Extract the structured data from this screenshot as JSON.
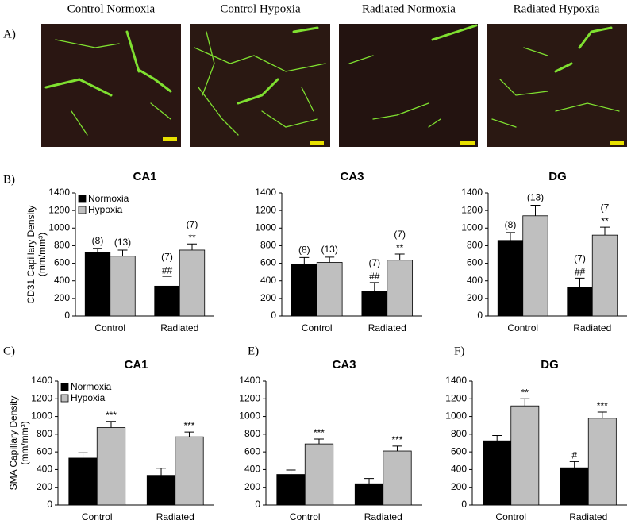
{
  "panel_a": {
    "label": "A)",
    "images": [
      "Control Normoxia",
      "Control Hypoxia",
      "Radiated Normoxia",
      "Radiated Hypoxia"
    ]
  },
  "chart_data": [
    {
      "type": "bar",
      "panel_label": "B)",
      "title": "CA1",
      "categories": [
        "Control",
        "Radiated"
      ],
      "ylabel": [
        "CD31 Capillary Density",
        "(mm/mm³)"
      ],
      "ylim": [
        0,
        1400
      ],
      "yticks": [
        0,
        200,
        400,
        600,
        800,
        1000,
        1200,
        1400
      ],
      "legend": "upper left",
      "series": [
        {
          "name": "Normoxia",
          "color": "#000000",
          "values": [
            720,
            340
          ],
          "errors": [
            50,
            110
          ],
          "n_labels": [
            "(8)",
            "(7)"
          ],
          "sig_labels": [
            null,
            "##"
          ]
        },
        {
          "name": "Hypoxia",
          "color": "#bfbfbf",
          "values": [
            680,
            750
          ],
          "errors": [
            70,
            70
          ],
          "n_labels": [
            "(13)",
            "(7)"
          ],
          "sig_labels": [
            null,
            "**"
          ]
        }
      ]
    },
    {
      "type": "bar",
      "title": "CA3",
      "categories": [
        "Control",
        "Radiated"
      ],
      "ylim": [
        0,
        1400
      ],
      "yticks": [
        0,
        200,
        400,
        600,
        800,
        1000,
        1200,
        1400
      ],
      "series": [
        {
          "name": "Normoxia",
          "color": "#000000",
          "values": [
            590,
            285
          ],
          "errors": [
            75,
            95
          ],
          "n_labels": [
            "(8)",
            "(7)"
          ],
          "sig_labels": [
            null,
            "##"
          ]
        },
        {
          "name": "Hypoxia",
          "color": "#bfbfbf",
          "values": [
            610,
            635
          ],
          "errors": [
            60,
            70
          ],
          "n_labels": [
            "(13)",
            "(7)"
          ],
          "sig_labels": [
            null,
            "**"
          ]
        }
      ]
    },
    {
      "type": "bar",
      "title": "DG",
      "categories": [
        "Control",
        "Radiated"
      ],
      "ylim": [
        0,
        1400
      ],
      "yticks": [
        0,
        200,
        400,
        600,
        800,
        1000,
        1200,
        1400
      ],
      "series": [
        {
          "name": "Normoxia",
          "color": "#000000",
          "values": [
            860,
            330
          ],
          "errors": [
            90,
            100
          ],
          "n_labels": [
            "(8)",
            "(7)"
          ],
          "sig_labels": [
            null,
            "##"
          ]
        },
        {
          "name": "Hypoxia",
          "color": "#bfbfbf",
          "values": [
            1140,
            920
          ],
          "errors": [
            120,
            90
          ],
          "n_labels": [
            "(13)",
            "(7"
          ],
          "sig_labels": [
            null,
            "**"
          ]
        }
      ]
    },
    {
      "type": "bar",
      "panel_label": "C)",
      "title": "CA1",
      "categories": [
        "Control",
        "Radiated"
      ],
      "ylabel": [
        "SMA Capillary Density",
        "(mm/mm³)"
      ],
      "ylim": [
        0,
        1400
      ],
      "yticks": [
        0,
        200,
        400,
        600,
        800,
        1000,
        1200,
        1400
      ],
      "legend": "upper left",
      "series": [
        {
          "name": "Normoxia",
          "color": "#000000",
          "values": [
            530,
            335
          ],
          "errors": [
            60,
            80
          ],
          "sig_labels": [
            null,
            null
          ]
        },
        {
          "name": "Hypoxia",
          "color": "#bfbfbf",
          "values": [
            875,
            770
          ],
          "errors": [
            70,
            55
          ],
          "sig_labels": [
            "***",
            "***"
          ]
        }
      ]
    },
    {
      "type": "bar",
      "panel_label": "E)",
      "title": "CA3",
      "categories": [
        "Control",
        "Radiated"
      ],
      "ylim": [
        0,
        1400
      ],
      "yticks": [
        0,
        200,
        400,
        600,
        800,
        1000,
        1200,
        1400
      ],
      "series": [
        {
          "name": "Normoxia",
          "color": "#000000",
          "values": [
            345,
            240
          ],
          "errors": [
            50,
            60
          ],
          "sig_labels": [
            null,
            null
          ]
        },
        {
          "name": "Hypoxia",
          "color": "#bfbfbf",
          "values": [
            690,
            610
          ],
          "errors": [
            55,
            55
          ],
          "sig_labels": [
            "***",
            "***"
          ]
        }
      ]
    },
    {
      "type": "bar",
      "panel_label": "F)",
      "title": "DG",
      "categories": [
        "Control",
        "Radiated"
      ],
      "ylim": [
        0,
        1400
      ],
      "yticks": [
        0,
        200,
        400,
        600,
        800,
        1000,
        1200,
        1400
      ],
      "series": [
        {
          "name": "Normoxia",
          "color": "#000000",
          "values": [
            725,
            420
          ],
          "errors": [
            60,
            70
          ],
          "sig_labels": [
            null,
            "#"
          ]
        },
        {
          "name": "Hypoxia",
          "color": "#bfbfbf",
          "values": [
            1120,
            980
          ],
          "errors": [
            80,
            70
          ],
          "sig_labels": [
            "**",
            "***"
          ]
        }
      ]
    }
  ]
}
